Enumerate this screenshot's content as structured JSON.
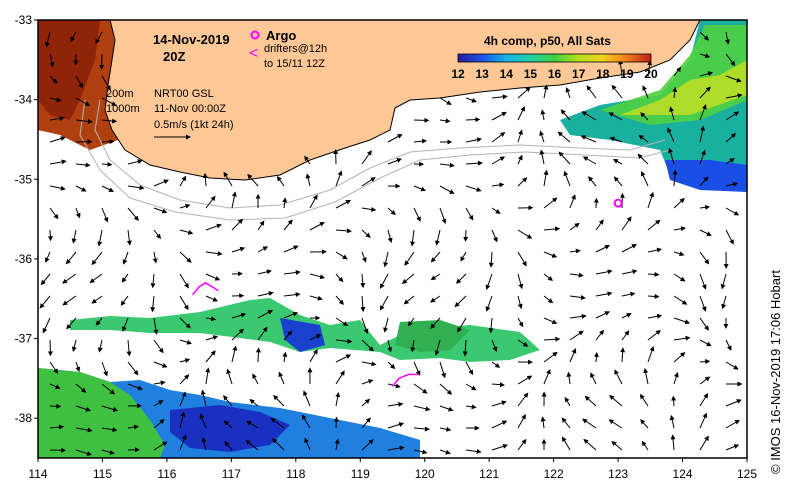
{
  "title": {
    "date": "14-Nov-2019",
    "time": "20Z"
  },
  "legend": {
    "argo_label": "Argo",
    "argo_symbol": "o",
    "drifter_line1": "drifters@12h",
    "drifter_line2": "to 15/11 12Z",
    "drifter_symbol": "<",
    "depth_200": "200m",
    "depth_1000": "1000m",
    "nrt_label": "NRT00 GSL",
    "nrt_date": "11-Nov 00:00Z",
    "scale_label": "0.5m/s (1kt 24h)"
  },
  "colorbar": {
    "title": "4h comp, p50, All Sats",
    "ticks": [
      "12",
      "13",
      "14",
      "15",
      "16",
      "17",
      "18",
      "19",
      "20"
    ],
    "min": 12,
    "max": 20
  },
  "axes": {
    "lon_ticks": [
      "114",
      "115",
      "116",
      "117",
      "118",
      "119",
      "120",
      "121",
      "122",
      "123",
      "124",
      "125"
    ],
    "lat_ticks": [
      "-33",
      "-34",
      "-35",
      "-36",
      "-37",
      "-38"
    ],
    "lon_min": 114,
    "lon_max": 125,
    "lat_min": -38.5,
    "lat_max": -33
  },
  "credit": "© IMOS 16-Nov-2019 17:06 Hobart",
  "argo_float": {
    "lon": 123.0,
    "lat": -35.3
  },
  "drifter_tracks": [
    [
      [
        116.4,
        -36.45
      ],
      [
        116.5,
        -36.35
      ],
      [
        116.6,
        -36.3
      ],
      [
        116.7,
        -36.35
      ],
      [
        116.8,
        -36.4
      ]
    ],
    [
      [
        119.5,
        -37.6
      ],
      [
        119.6,
        -37.5
      ],
      [
        119.75,
        -37.45
      ],
      [
        119.9,
        -37.45
      ]
    ]
  ],
  "colors": {
    "land": "#fdc896",
    "coast": "#000000",
    "argo": "#ff00ff",
    "drifter": "#ff00ff",
    "contour": "#b4b4b4",
    "accent": "#000000"
  }
}
